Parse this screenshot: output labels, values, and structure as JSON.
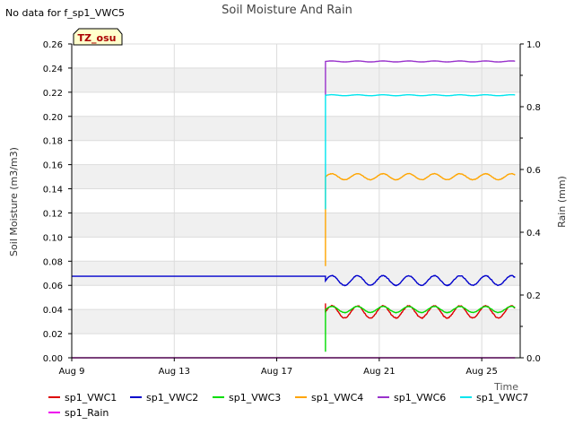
{
  "chart_data": {
    "type": "line",
    "title": "Soil Moisture And Rain",
    "no_data_note": "No data for f_sp1_VWC5",
    "badge": "TZ_osu",
    "xlabel": "Time",
    "ylabel": "Soil Moisture (m3/m3)",
    "y2label": "Rain (mm)",
    "x_start": "Aug 9",
    "x_days_range": [
      0,
      17.5
    ],
    "ylim": [
      0.0,
      0.26
    ],
    "y2lim": [
      0.0,
      1.0
    ],
    "x_ticks": [
      {
        "day": 0,
        "label": "Aug 9"
      },
      {
        "day": 4,
        "label": "Aug 13"
      },
      {
        "day": 8,
        "label": "Aug 17"
      },
      {
        "day": 12,
        "label": "Aug 21"
      },
      {
        "day": 16,
        "label": "Aug 25"
      }
    ],
    "y_ticks": [
      0.0,
      0.02,
      0.04,
      0.06,
      0.08,
      0.1,
      0.12,
      0.14,
      0.16,
      0.18,
      0.2,
      0.22,
      0.24,
      0.26
    ],
    "y_tick_labels": [
      "0.00",
      "0.02",
      "0.04",
      "0.06",
      "0.08",
      "0.10",
      "0.12",
      "0.14",
      "0.16",
      "0.18",
      "0.20",
      "0.22",
      "0.24",
      "0.26"
    ],
    "y2_ticks": [
      0.0,
      0.2,
      0.4,
      0.6,
      0.8,
      1.0
    ],
    "y2_tick_labels": [
      "0.0",
      "0.2",
      "0.4",
      "0.6",
      "0.8",
      "1.0"
    ],
    "grid": true,
    "legend_position": "bottom",
    "series": [
      {
        "name": "sp1_VWC1",
        "color": "#dd0000",
        "axis": "left",
        "segments": [
          {
            "start_day": 9.9,
            "end_day": 17.3,
            "base": 0.038,
            "amp": 0.005,
            "period": 1.0,
            "spike_from": 0.045
          }
        ]
      },
      {
        "name": "sp1_VWC2",
        "color": "#0000cc",
        "axis": "left",
        "segments": [
          {
            "start_day": 0.0,
            "end_day": 9.9,
            "base": 0.0675,
            "amp": 0.0,
            "period": 1.0
          },
          {
            "start_day": 9.9,
            "end_day": 17.3,
            "base": 0.064,
            "amp": 0.004,
            "period": 1.0
          }
        ]
      },
      {
        "name": "sp1_VWC3",
        "color": "#00dd00",
        "axis": "left",
        "segments": [
          {
            "start_day": 9.9,
            "end_day": 17.3,
            "base": 0.04,
            "amp": 0.0025,
            "period": 1.0,
            "spike_from": 0.005
          }
        ]
      },
      {
        "name": "sp1_VWC4",
        "color": "#ffa500",
        "axis": "left",
        "segments": [
          {
            "start_day": 9.9,
            "end_day": 17.3,
            "base": 0.15,
            "amp": 0.0025,
            "period": 1.0,
            "spike_from": 0.076
          }
        ]
      },
      {
        "name": "sp1_VWC6",
        "color": "#9932cc",
        "axis": "left",
        "segments": [
          {
            "start_day": 9.9,
            "end_day": 17.3,
            "base": 0.2455,
            "amp": 0.0004,
            "period": 1.0,
            "spike_from": 0.218
          }
        ]
      },
      {
        "name": "sp1_VWC7",
        "color": "#00e5ee",
        "axis": "left",
        "segments": [
          {
            "start_day": 9.9,
            "end_day": 17.3,
            "base": 0.2175,
            "amp": 0.0004,
            "period": 1.0,
            "spike_from": 0.123
          }
        ]
      },
      {
        "name": "sp1_Rain",
        "color": "#ee00ee",
        "axis": "right",
        "segments": [
          {
            "start_day": 0.0,
            "end_day": 17.3,
            "base": 0.0,
            "amp": 0.0,
            "period": 1.0
          }
        ]
      }
    ]
  }
}
